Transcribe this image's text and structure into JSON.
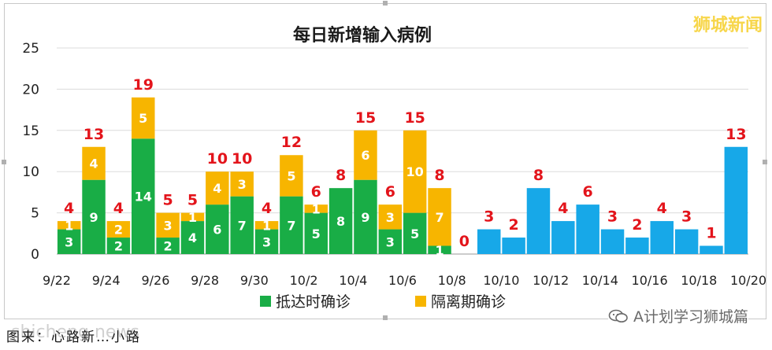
{
  "watermark_top": "狮城新闻",
  "wechat_label": "A计划学习狮城篇",
  "caption": "图来：心路新…小路",
  "site_watermark": "shicheng.news",
  "colors": {
    "arrival": "#19ad46",
    "quarantine": "#f7b500",
    "blue": "#17a8e8",
    "total_label": "#e3141b"
  },
  "chart_data": {
    "type": "bar",
    "title": "每日新增输入病例",
    "ylim": [
      0,
      25
    ],
    "yticks": [
      0,
      5,
      10,
      15,
      20,
      25
    ],
    "categories": [
      "9/22",
      "9/23",
      "9/24",
      "9/25",
      "9/26",
      "9/27",
      "9/28",
      "9/29",
      "9/30",
      "10/1",
      "10/2",
      "10/3",
      "10/4",
      "10/5",
      "10/6",
      "10/7",
      "10/8",
      "10/9",
      "10/10",
      "10/11",
      "10/12",
      "10/13",
      "10/14",
      "10/15",
      "10/16",
      "10/17",
      "10/18",
      "10/19"
    ],
    "xtick_labels": [
      "9/22",
      "9/24",
      "9/26",
      "9/28",
      "9/30",
      "10/2",
      "10/4",
      "10/6",
      "10/8",
      "10/10",
      "10/12",
      "10/14",
      "10/16",
      "10/18",
      "10/20"
    ],
    "series": [
      {
        "name": "抵达时确诊",
        "values": [
          3,
          9,
          2,
          14,
          2,
          4,
          6,
          7,
          3,
          7,
          5,
          8,
          9,
          3,
          5,
          1,
          0,
          null,
          null,
          null,
          null,
          null,
          null,
          null,
          null,
          null,
          null,
          null
        ]
      },
      {
        "name": "隔离期确诊",
        "values": [
          1,
          4,
          2,
          5,
          3,
          1,
          4,
          3,
          1,
          5,
          1,
          0,
          6,
          3,
          10,
          7,
          0,
          null,
          null,
          null,
          null,
          null,
          null,
          null,
          null,
          null,
          null,
          null
        ]
      },
      {
        "values": [
          null,
          null,
          null,
          null,
          null,
          null,
          null,
          null,
          null,
          null,
          null,
          null,
          null,
          null,
          null,
          null,
          null,
          3,
          2,
          8,
          4,
          6,
          3,
          2,
          4,
          3,
          1,
          13
        ]
      }
    ],
    "totals": [
      4,
      13,
      4,
      19,
      5,
      5,
      10,
      10,
      4,
      12,
      6,
      8,
      15,
      6,
      15,
      8,
      0,
      3,
      2,
      8,
      4,
      6,
      3,
      2,
      4,
      3,
      1,
      13
    ],
    "legend": [
      "抵达时确诊",
      "隔离期确诊"
    ],
    "legend_position": "bottom",
    "grid": true
  }
}
